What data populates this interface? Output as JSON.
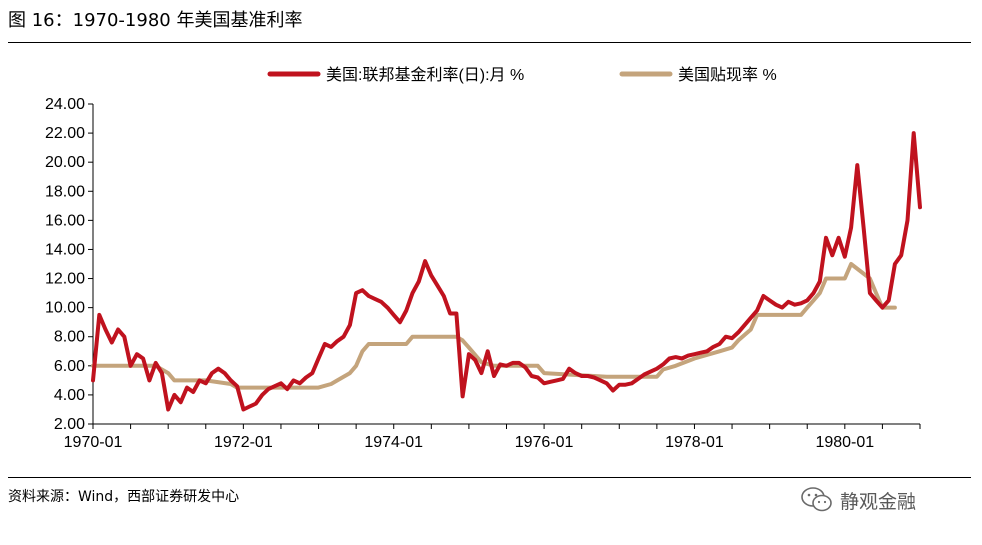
{
  "figure": {
    "title": "图 16：1970-1980 年美国基准利率",
    "source": "资料来源：Wind，西部证券研发中心",
    "watermark": "静观金融"
  },
  "chart_data": {
    "type": "line",
    "x_unit": "month",
    "xlim": [
      "1970-01",
      "1980-12"
    ],
    "ylim": [
      2.0,
      24.0
    ],
    "yticks": [
      "2.00",
      "4.00",
      "6.00",
      "8.00",
      "10.00",
      "12.00",
      "14.00",
      "16.00",
      "18.00",
      "20.00",
      "22.00",
      "24.00"
    ],
    "xticks": [
      "1970-01",
      "1972-01",
      "1974-01",
      "1976-01",
      "1978-01",
      "1980-01"
    ],
    "legend_position": "top",
    "grid": false,
    "series": [
      {
        "name": "美国:联邦基金利率(日):月 %",
        "color": "#c0121e",
        "points": [
          [
            "1970-01",
            5.0
          ],
          [
            "1970-02",
            9.5
          ],
          [
            "1970-03",
            8.5
          ],
          [
            "1970-04",
            7.6
          ],
          [
            "1970-05",
            8.5
          ],
          [
            "1970-06",
            8.0
          ],
          [
            "1970-07",
            6.0
          ],
          [
            "1970-08",
            6.8
          ],
          [
            "1970-09",
            6.5
          ],
          [
            "1970-10",
            5.0
          ],
          [
            "1970-11",
            6.2
          ],
          [
            "1970-12",
            5.5
          ],
          [
            "1971-01",
            3.0
          ],
          [
            "1971-02",
            4.0
          ],
          [
            "1971-03",
            3.5
          ],
          [
            "1971-04",
            4.5
          ],
          [
            "1971-05",
            4.2
          ],
          [
            "1971-06",
            5.0
          ],
          [
            "1971-07",
            4.8
          ],
          [
            "1971-08",
            5.5
          ],
          [
            "1971-09",
            5.8
          ],
          [
            "1971-10",
            5.5
          ],
          [
            "1971-11",
            5.0
          ],
          [
            "1971-12",
            4.6
          ],
          [
            "1972-01",
            3.0
          ],
          [
            "1972-02",
            3.2
          ],
          [
            "1972-03",
            3.4
          ],
          [
            "1972-04",
            4.0
          ],
          [
            "1972-05",
            4.4
          ],
          [
            "1972-06",
            4.6
          ],
          [
            "1972-07",
            4.8
          ],
          [
            "1972-08",
            4.4
          ],
          [
            "1972-09",
            5.0
          ],
          [
            "1972-10",
            4.8
          ],
          [
            "1972-11",
            5.2
          ],
          [
            "1972-12",
            5.5
          ],
          [
            "1973-01",
            6.5
          ],
          [
            "1973-02",
            7.5
          ],
          [
            "1973-03",
            7.3
          ],
          [
            "1973-04",
            7.7
          ],
          [
            "1973-05",
            8.0
          ],
          [
            "1973-06",
            8.8
          ],
          [
            "1973-07",
            11.0
          ],
          [
            "1973-08",
            11.2
          ],
          [
            "1973-09",
            10.8
          ],
          [
            "1973-10",
            10.6
          ],
          [
            "1973-11",
            10.4
          ],
          [
            "1973-12",
            10.0
          ],
          [
            "1974-01",
            9.5
          ],
          [
            "1974-02",
            9.0
          ],
          [
            "1974-03",
            9.8
          ],
          [
            "1974-04",
            11.0
          ],
          [
            "1974-05",
            11.8
          ],
          [
            "1974-06",
            13.2
          ],
          [
            "1974-07",
            12.2
          ],
          [
            "1974-08",
            11.5
          ],
          [
            "1974-09",
            10.8
          ],
          [
            "1974-10",
            9.6
          ],
          [
            "1974-11",
            9.6
          ],
          [
            "1974-12",
            3.9
          ],
          [
            "1975-01",
            6.8
          ],
          [
            "1975-02",
            6.4
          ],
          [
            "1975-03",
            5.5
          ],
          [
            "1975-04",
            7.0
          ],
          [
            "1975-05",
            5.3
          ],
          [
            "1975-06",
            6.1
          ],
          [
            "1975-07",
            6.0
          ],
          [
            "1975-08",
            6.2
          ],
          [
            "1975-09",
            6.2
          ],
          [
            "1975-10",
            5.9
          ],
          [
            "1975-11",
            5.3
          ],
          [
            "1975-12",
            5.2
          ],
          [
            "1976-01",
            4.8
          ],
          [
            "1976-02",
            4.9
          ],
          [
            "1976-03",
            5.0
          ],
          [
            "1976-04",
            5.1
          ],
          [
            "1976-05",
            5.8
          ],
          [
            "1976-06",
            5.5
          ],
          [
            "1976-07",
            5.3
          ],
          [
            "1976-08",
            5.3
          ],
          [
            "1976-09",
            5.2
          ],
          [
            "1976-10",
            5.0
          ],
          [
            "1976-11",
            4.8
          ],
          [
            "1976-12",
            4.3
          ],
          [
            "1977-01",
            4.7
          ],
          [
            "1977-02",
            4.7
          ],
          [
            "1977-03",
            4.8
          ],
          [
            "1977-04",
            5.1
          ],
          [
            "1977-05",
            5.4
          ],
          [
            "1977-06",
            5.6
          ],
          [
            "1977-07",
            5.8
          ],
          [
            "1977-08",
            6.1
          ],
          [
            "1977-09",
            6.5
          ],
          [
            "1977-10",
            6.6
          ],
          [
            "1977-11",
            6.5
          ],
          [
            "1977-12",
            6.7
          ],
          [
            "1978-01",
            6.8
          ],
          [
            "1978-02",
            6.9
          ],
          [
            "1978-03",
            7.0
          ],
          [
            "1978-04",
            7.3
          ],
          [
            "1978-05",
            7.5
          ],
          [
            "1978-06",
            8.0
          ],
          [
            "1978-07",
            7.9
          ],
          [
            "1978-08",
            8.3
          ],
          [
            "1978-09",
            8.8
          ],
          [
            "1978-10",
            9.3
          ],
          [
            "1978-11",
            9.8
          ],
          [
            "1978-12",
            10.8
          ],
          [
            "1979-01",
            10.5
          ],
          [
            "1979-02",
            10.2
          ],
          [
            "1979-03",
            10.0
          ],
          [
            "1979-04",
            10.4
          ],
          [
            "1979-05",
            10.2
          ],
          [
            "1979-06",
            10.3
          ],
          [
            "1979-07",
            10.5
          ],
          [
            "1979-08",
            11.0
          ],
          [
            "1979-09",
            11.8
          ],
          [
            "1979-10",
            14.8
          ],
          [
            "1979-11",
            13.6
          ],
          [
            "1979-12",
            14.8
          ],
          [
            "1980-01",
            13.5
          ],
          [
            "1980-02",
            15.5
          ],
          [
            "1980-03",
            19.8
          ],
          [
            "1980-04",
            15.5
          ],
          [
            "1980-05",
            11.0
          ],
          [
            "1980-06",
            10.5
          ],
          [
            "1980-07",
            10.0
          ],
          [
            "1980-08",
            10.5
          ],
          [
            "1980-09",
            13.0
          ],
          [
            "1980-10",
            13.6
          ],
          [
            "1980-11",
            16.0
          ],
          [
            "1980-12",
            22.0
          ],
          [
            "1981-01",
            16.9
          ]
        ]
      },
      {
        "name": "美国贴现率 %",
        "color": "#c4a47c",
        "points": [
          [
            "1970-01",
            6.0
          ],
          [
            "1970-11",
            6.0
          ],
          [
            "1970-12",
            5.75
          ],
          [
            "1971-01",
            5.5
          ],
          [
            "1971-02",
            5.0
          ],
          [
            "1971-07",
            5.0
          ],
          [
            "1971-11",
            4.75
          ],
          [
            "1971-12",
            4.5
          ],
          [
            "1972-01",
            4.5
          ],
          [
            "1972-06",
            4.5
          ],
          [
            "1972-12",
            4.5
          ],
          [
            "1973-01",
            4.5
          ],
          [
            "1973-03",
            4.75
          ],
          [
            "1973-04",
            5.0
          ],
          [
            "1973-06",
            5.5
          ],
          [
            "1973-07",
            6.0
          ],
          [
            "1973-08",
            7.0
          ],
          [
            "1973-09",
            7.5
          ],
          [
            "1974-03",
            7.5
          ],
          [
            "1974-04",
            8.0
          ],
          [
            "1974-11",
            8.0
          ],
          [
            "1974-12",
            7.75
          ],
          [
            "1975-01",
            7.25
          ],
          [
            "1975-03",
            6.25
          ],
          [
            "1975-05",
            6.0
          ],
          [
            "1975-12",
            6.0
          ],
          [
            "1976-01",
            5.5
          ],
          [
            "1976-11",
            5.25
          ],
          [
            "1977-07",
            5.25
          ],
          [
            "1977-08",
            5.75
          ],
          [
            "1977-10",
            6.0
          ],
          [
            "1978-01",
            6.5
          ],
          [
            "1978-05",
            7.0
          ],
          [
            "1978-07",
            7.25
          ],
          [
            "1978-08",
            7.75
          ],
          [
            "1978-10",
            8.5
          ],
          [
            "1978-11",
            9.5
          ],
          [
            "1979-06",
            9.5
          ],
          [
            "1979-07",
            10.0
          ],
          [
            "1979-08",
            10.5
          ],
          [
            "1979-09",
            11.0
          ],
          [
            "1979-10",
            12.0
          ],
          [
            "1980-01",
            12.0
          ],
          [
            "1980-02",
            13.0
          ],
          [
            "1980-05",
            12.0
          ],
          [
            "1980-06",
            11.0
          ],
          [
            "1980-07",
            10.0
          ],
          [
            "1980-09",
            10.0
          ]
        ]
      }
    ]
  }
}
